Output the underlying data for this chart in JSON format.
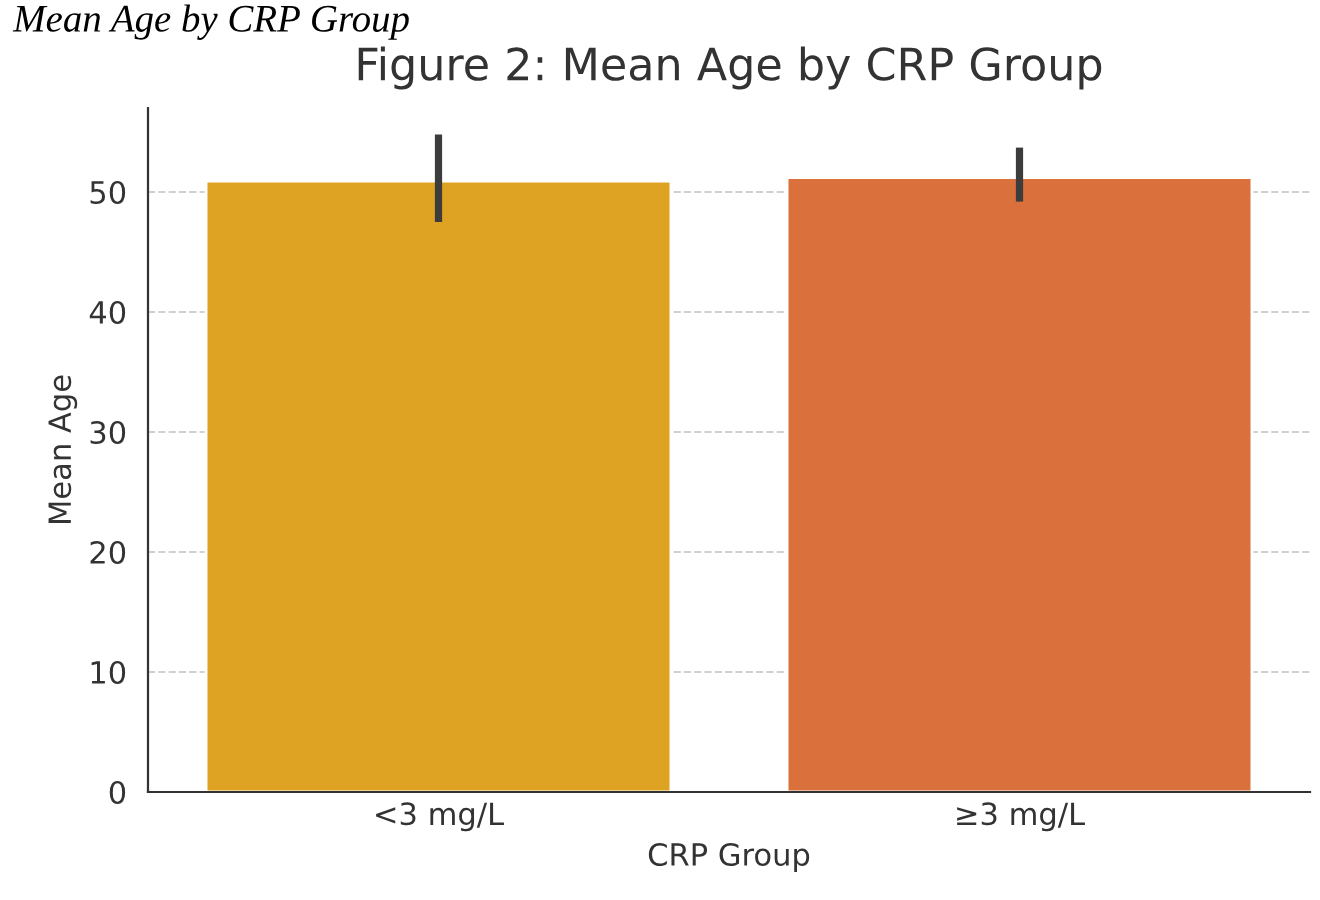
{
  "chart_data": {
    "type": "bar",
    "title": "Figure 2: Mean Age by CRP Group",
    "xlabel": "CRP Group",
    "ylabel": "Mean Age",
    "annotations": [
      "Mean Age by CRP Group"
    ],
    "categories": [
      "<3 mg/L",
      "≥3 mg/L"
    ],
    "values": [
      50.9,
      51.2
    ],
    "colors": [
      "#dea323",
      "#da703b"
    ],
    "errors": [
      [
        47.5,
        54.8
      ],
      [
        49.2,
        53.7
      ]
    ],
    "ylim": [
      0,
      57
    ],
    "yticks": [
      0,
      10,
      20,
      30,
      40,
      50
    ],
    "grid": "y"
  }
}
